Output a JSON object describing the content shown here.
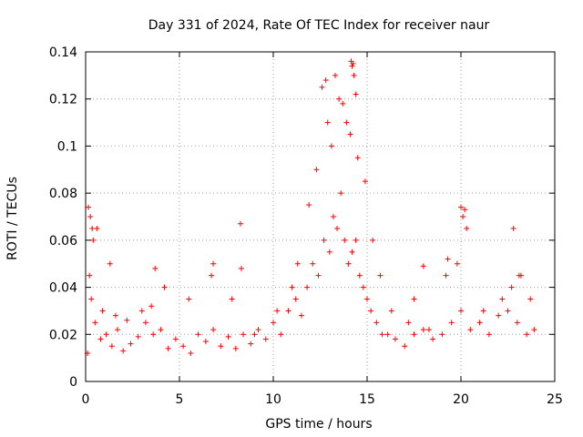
{
  "chart_data": {
    "type": "scatter",
    "title": "Day 331 of 2024, Rate Of TEC Index for receiver naur",
    "xlabel": "GPS time / hours",
    "ylabel": "ROTI / TECUs",
    "xlim": [
      0,
      25
    ],
    "ylim": [
      0,
      0.14
    ],
    "xticks": [
      0,
      5,
      10,
      15,
      20,
      25
    ],
    "xtick_labels": [
      "0",
      "5",
      "10",
      "15",
      "20",
      "25"
    ],
    "yticks": [
      0,
      0.02,
      0.04,
      0.06,
      0.08,
      0.1,
      0.12,
      0.14
    ],
    "ytick_labels": [
      "0",
      "0.02",
      "0.04",
      "0.06",
      "0.08",
      "0.1",
      "0.12",
      "0.14"
    ],
    "grid": true,
    "marker": "+",
    "color": "#ff0000",
    "series": [
      {
        "name": "ROTI",
        "x": [
          0.1,
          0.3,
          0.5,
          0.8,
          1.1,
          1.4,
          1.7,
          2.0,
          2.4,
          2.8,
          3.2,
          3.6,
          4.0,
          4.4,
          4.8,
          5.2,
          5.6,
          6.0,
          6.4,
          6.8,
          7.2,
          7.6,
          8.0,
          8.4,
          8.8,
          9.2,
          9.6,
          10.0,
          10.4,
          10.8,
          11.2,
          11.5,
          11.8,
          12.1,
          12.4,
          12.7,
          13.0,
          13.2,
          13.4,
          13.6,
          13.8,
          14.0,
          14.2,
          14.4,
          14.6,
          14.8,
          15.0,
          15.2,
          15.5,
          15.8,
          16.1,
          16.5,
          17.0,
          17.5,
          18.0,
          18.5,
          19.0,
          19.5,
          20.0,
          20.5,
          21.0,
          21.5,
          22.0,
          22.5,
          23.0,
          23.5,
          23.9,
          0.2,
          0.4,
          0.9,
          1.6,
          2.2,
          3.0,
          3.5,
          4.2,
          5.5,
          6.7,
          7.8,
          8.3,
          9.0,
          10.2,
          11.0,
          11.3,
          11.9,
          12.3,
          12.9,
          13.1,
          13.5,
          13.9,
          14.1,
          14.3,
          14.5,
          14.9,
          15.3,
          15.7,
          16.3,
          17.2,
          18.3,
          19.2,
          19.8,
          20.1,
          20.3,
          21.2,
          22.2,
          22.7,
          23.2,
          23.7,
          0.15,
          0.25,
          0.35,
          0.6,
          1.3,
          3.7,
          6.8,
          8.25,
          12.6,
          12.8,
          13.3,
          13.7,
          14.15,
          14.2,
          14.25,
          14.4,
          17.5,
          18.0,
          19.3,
          20.0,
          20.2,
          22.8,
          23.1
        ],
        "y": [
          0.012,
          0.035,
          0.025,
          0.018,
          0.02,
          0.015,
          0.022,
          0.013,
          0.016,
          0.019,
          0.025,
          0.02,
          0.022,
          0.014,
          0.018,
          0.015,
          0.012,
          0.02,
          0.017,
          0.022,
          0.015,
          0.019,
          0.014,
          0.02,
          0.016,
          0.022,
          0.018,
          0.025,
          0.02,
          0.03,
          0.035,
          0.028,
          0.04,
          0.05,
          0.045,
          0.06,
          0.055,
          0.07,
          0.065,
          0.08,
          0.06,
          0.05,
          0.055,
          0.06,
          0.045,
          0.04,
          0.035,
          0.03,
          0.025,
          0.02,
          0.02,
          0.018,
          0.015,
          0.02,
          0.022,
          0.018,
          0.02,
          0.025,
          0.03,
          0.022,
          0.025,
          0.02,
          0.028,
          0.03,
          0.025,
          0.02,
          0.022,
          0.045,
          0.06,
          0.03,
          0.028,
          0.026,
          0.03,
          0.032,
          0.04,
          0.035,
          0.045,
          0.035,
          0.048,
          0.02,
          0.03,
          0.04,
          0.05,
          0.075,
          0.09,
          0.11,
          0.1,
          0.12,
          0.11,
          0.105,
          0.13,
          0.095,
          0.085,
          0.06,
          0.045,
          0.03,
          0.025,
          0.022,
          0.045,
          0.05,
          0.07,
          0.065,
          0.03,
          0.035,
          0.04,
          0.045,
          0.035,
          0.074,
          0.07,
          0.065,
          0.065,
          0.05,
          0.048,
          0.05,
          0.067,
          0.125,
          0.128,
          0.13,
          0.118,
          0.136,
          0.134,
          0.135,
          0.122,
          0.035,
          0.049,
          0.052,
          0.074,
          0.073,
          0.065,
          0.045
        ]
      }
    ]
  }
}
